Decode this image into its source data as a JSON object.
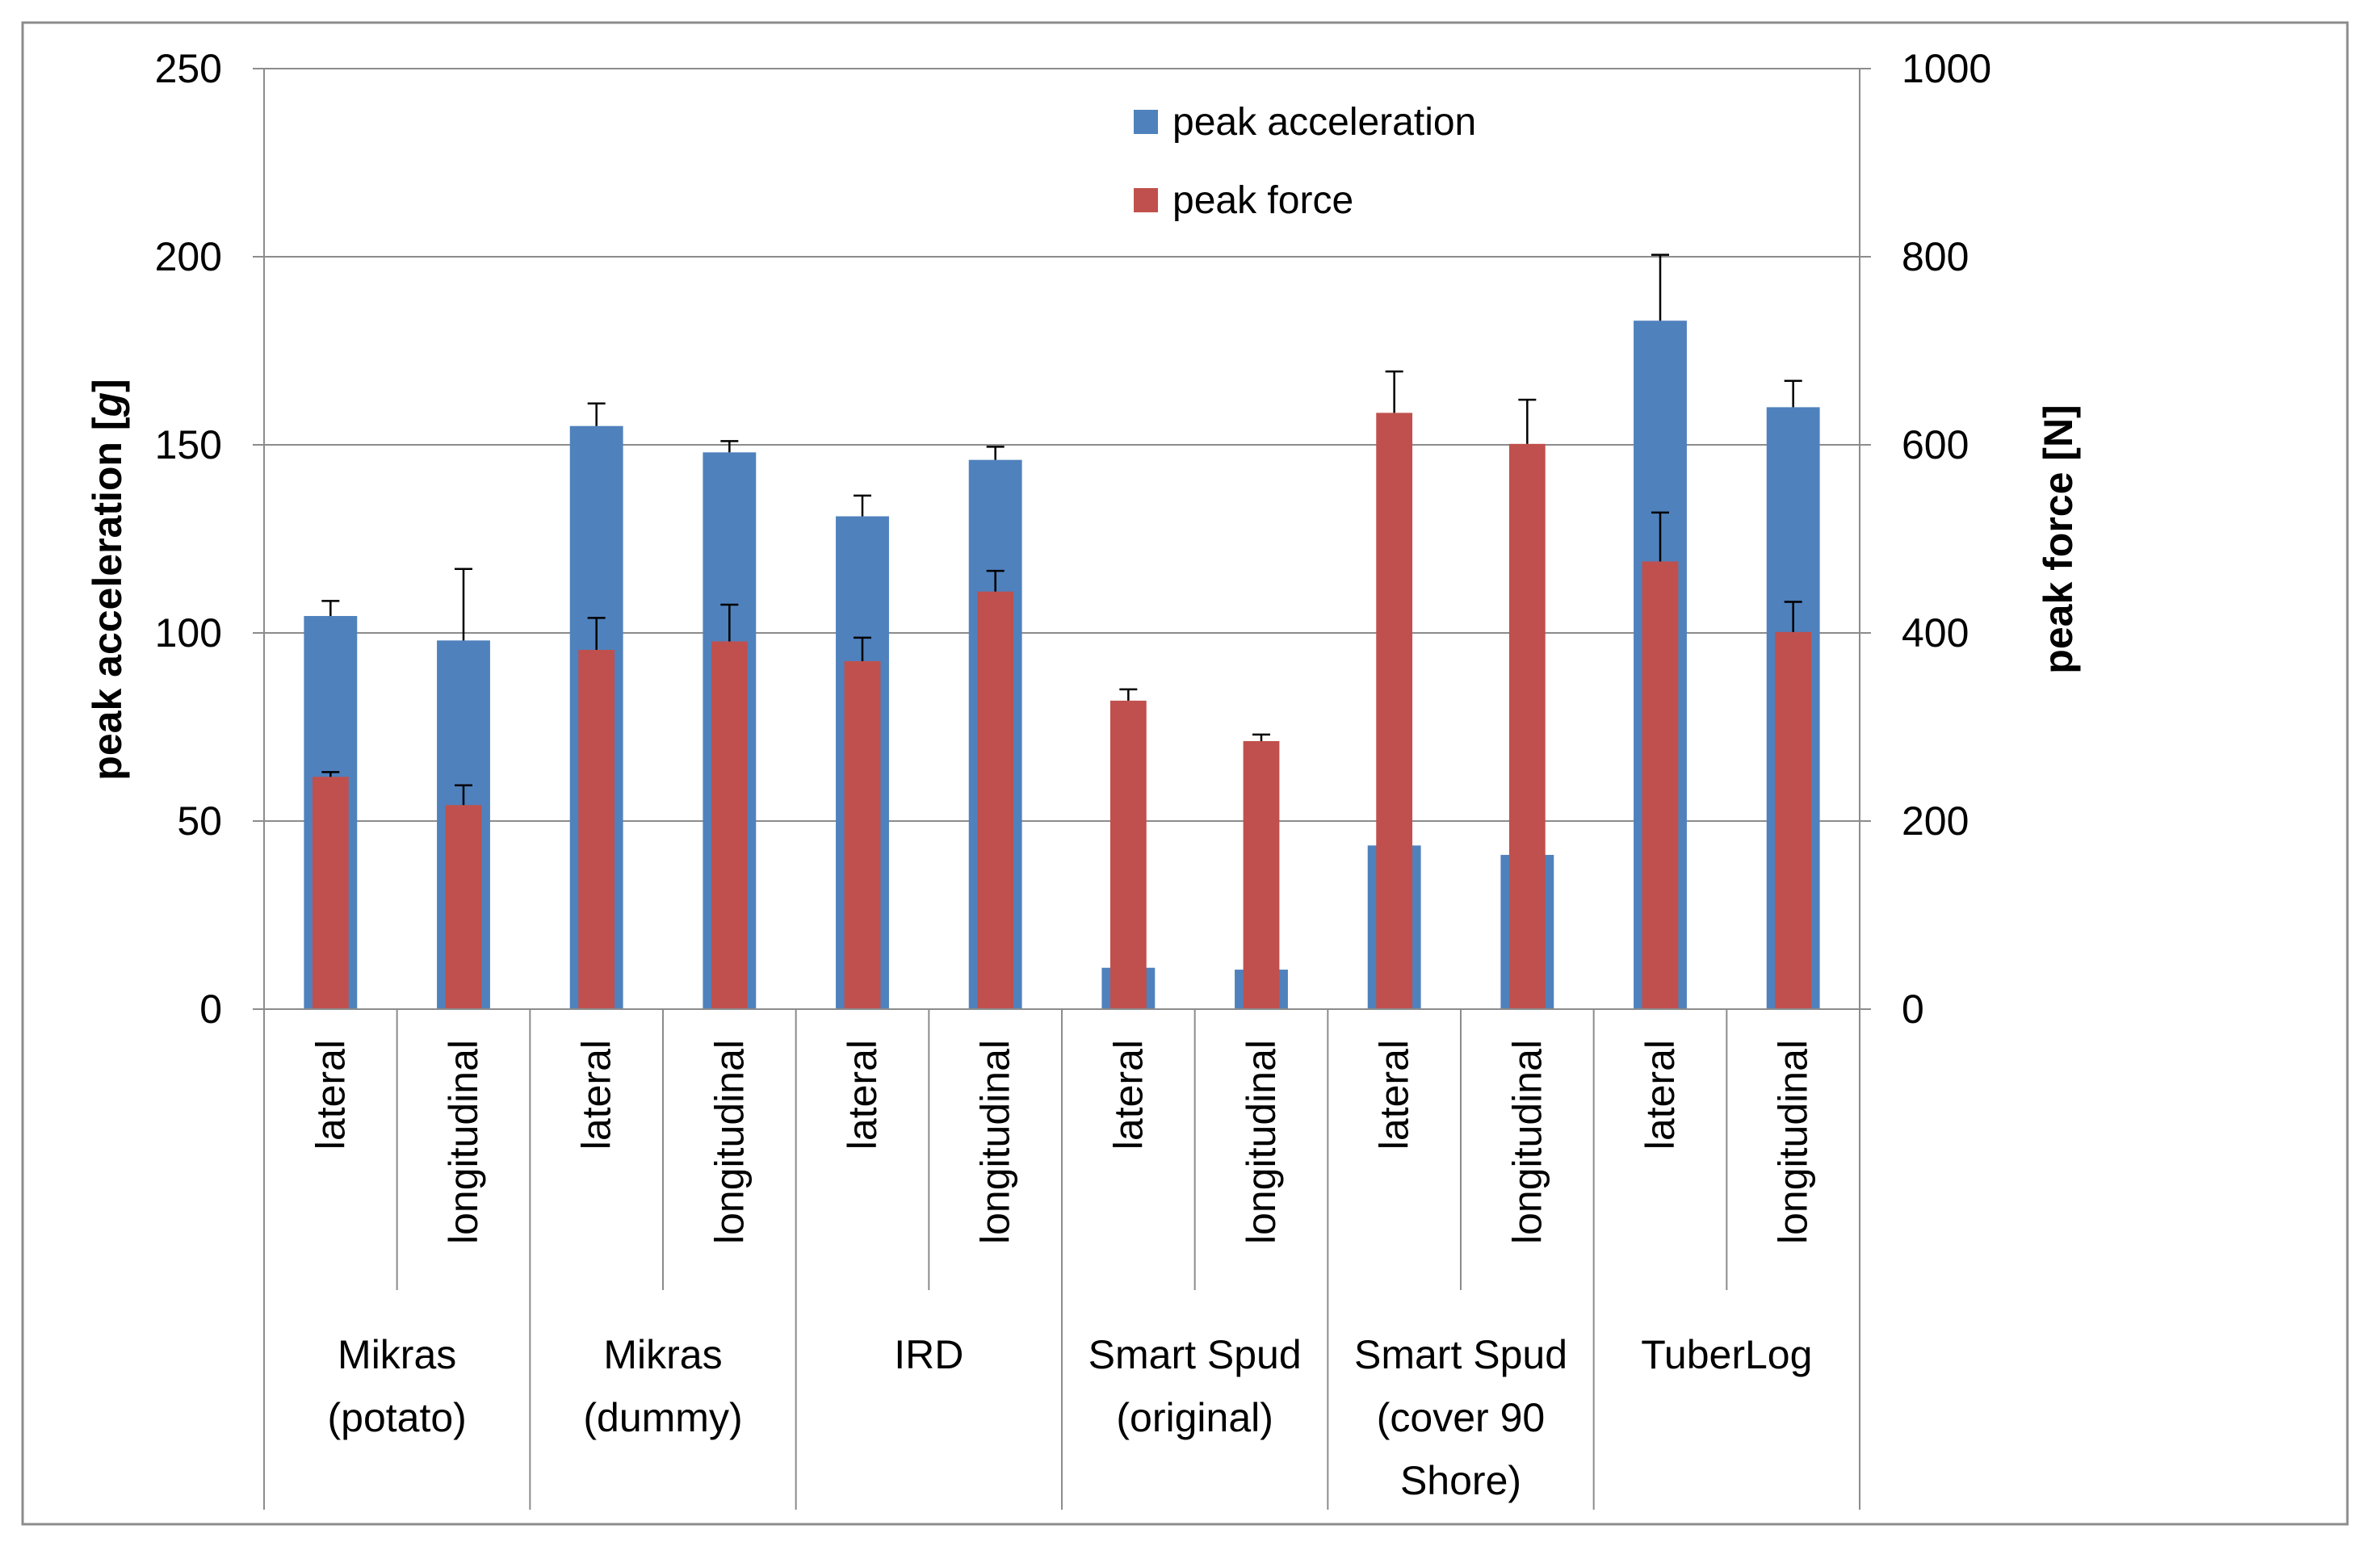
{
  "chart_data": {
    "type": "bar",
    "title": "",
    "y_left": {
      "label_prefix": "peak acceleration [",
      "label_unit": "g",
      "label_suffix": "]",
      "ylim": [
        0,
        250
      ],
      "ticks": [
        "0",
        "50",
        "100",
        "150",
        "200",
        "250"
      ]
    },
    "y_right": {
      "label": "peak force [N]",
      "ylim": [
        0,
        1000
      ],
      "ticks": [
        "0",
        "200",
        "400",
        "600",
        "800",
        "1000"
      ]
    },
    "grid": true,
    "legend_position": "top-center",
    "groups": [
      {
        "line1": "Mikras",
        "line2": "(potato)",
        "line3": ""
      },
      {
        "line1": "Mikras",
        "line2": "(dummy)",
        "line3": ""
      },
      {
        "line1": "IRD",
        "line2": "",
        "line3": ""
      },
      {
        "line1": "Smart Spud",
        "line2": "(original)",
        "line3": ""
      },
      {
        "line1": "Smart Spud",
        "line2": "(cover 90",
        "line3": "Shore)"
      },
      {
        "line1": "TuberLog",
        "line2": "",
        "line3": ""
      }
    ],
    "categories": [
      "lateral",
      "longitudinal",
      "lateral",
      "longitudinal",
      "lateral",
      "longitudinal",
      "lateral",
      "longitudinal",
      "lateral",
      "longitudinal",
      "lateral",
      "longitudinal"
    ],
    "series": [
      {
        "name": "peak acceleration",
        "axis": "left",
        "color": "#4f81bd",
        "values": [
          104.5,
          98,
          155,
          148,
          131,
          146,
          11,
          10.5,
          43.5,
          41,
          183,
          160
        ],
        "error_top": [
          108.5,
          117,
          161,
          151,
          136.5,
          149.5,
          null,
          null,
          null,
          null,
          200.5,
          167
        ]
      },
      {
        "name": "peak force",
        "axis": "right",
        "color": "#c0504d",
        "values": [
          247,
          217,
          382,
          391,
          370,
          444,
          328,
          285,
          634,
          601,
          476,
          401
        ],
        "error_top": [
          252,
          238,
          416,
          430,
          395,
          466,
          340,
          292,
          678,
          648,
          528,
          433
        ]
      }
    ]
  }
}
